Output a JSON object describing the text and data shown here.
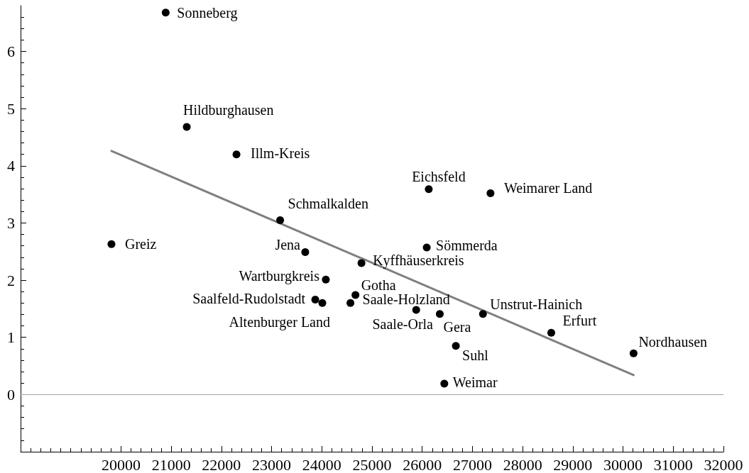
{
  "chart_data": {
    "type": "scatter",
    "marker": "circle",
    "xlim": [
      18000,
      32000
    ],
    "ylim": [
      -1,
      6.8
    ],
    "xticks": [
      {
        "value": 18200,
        "label": null
      },
      {
        "value": 18400,
        "label": null
      },
      {
        "value": 18600,
        "label": null
      },
      {
        "value": 18800,
        "label": null
      },
      {
        "value": 19000,
        "label": null
      },
      {
        "value": 19200,
        "label": null
      },
      {
        "value": 19400,
        "label": null
      },
      {
        "value": 19600,
        "label": null
      },
      {
        "value": 19800,
        "label": null
      },
      20000,
      {
        "value": 20200,
        "label": null
      },
      {
        "value": 20400,
        "label": null
      },
      {
        "value": 20600,
        "label": null
      },
      {
        "value": 20800,
        "label": null
      },
      21000,
      {
        "value": 21200,
        "label": null
      },
      {
        "value": 21400,
        "label": null
      },
      {
        "value": 21600,
        "label": null
      },
      {
        "value": 21800,
        "label": null
      },
      22000,
      {
        "value": 22200,
        "label": null
      },
      {
        "value": 22400,
        "label": null
      },
      {
        "value": 22600,
        "label": null
      },
      {
        "value": 22800,
        "label": null
      },
      23000,
      {
        "value": 23200,
        "label": null
      },
      {
        "value": 23400,
        "label": null
      },
      {
        "value": 23600,
        "label": null
      },
      {
        "value": 23800,
        "label": null
      },
      24000,
      {
        "value": 24200,
        "label": null
      },
      {
        "value": 24400,
        "label": null
      },
      {
        "value": 24600,
        "label": null
      },
      {
        "value": 24800,
        "label": null
      },
      25000,
      {
        "value": 25200,
        "label": null
      },
      {
        "value": 25400,
        "label": null
      },
      {
        "value": 25600,
        "label": null
      },
      {
        "value": 25800,
        "label": null
      },
      26000,
      {
        "value": 26200,
        "label": null
      },
      {
        "value": 26400,
        "label": null
      },
      {
        "value": 26600,
        "label": null
      },
      {
        "value": 26800,
        "label": null
      },
      27000,
      {
        "value": 27200,
        "label": null
      },
      {
        "value": 27400,
        "label": null
      },
      {
        "value": 27600,
        "label": null
      },
      {
        "value": 27800,
        "label": null
      },
      28000,
      {
        "value": 28200,
        "label": null
      },
      {
        "value": 28400,
        "label": null
      },
      {
        "value": 28600,
        "label": null
      },
      {
        "value": 28800,
        "label": null
      },
      29000,
      {
        "value": 29200,
        "label": null
      },
      {
        "value": 29400,
        "label": null
      },
      {
        "value": 29600,
        "label": null
      },
      {
        "value": 29800,
        "label": null
      },
      30000,
      {
        "value": 30200,
        "label": null
      },
      {
        "value": 30400,
        "label": null
      },
      {
        "value": 30600,
        "label": null
      },
      {
        "value": 30800,
        "label": null
      },
      31000,
      {
        "value": 31200,
        "label": null
      },
      {
        "value": 31400,
        "label": null
      },
      {
        "value": 31600,
        "label": null
      },
      {
        "value": 31800,
        "label": null
      },
      32000
    ],
    "yticks": [
      {
        "value": -0.8,
        "label": null
      },
      {
        "value": -0.6,
        "label": null
      },
      {
        "value": -0.4,
        "label": null
      },
      {
        "value": -0.2,
        "label": null
      },
      0,
      {
        "value": 0.2,
        "label": null
      },
      {
        "value": 0.4,
        "label": null
      },
      {
        "value": 0.6,
        "label": null
      },
      {
        "value": 0.8,
        "label": null
      },
      1,
      {
        "value": 1.2,
        "label": null
      },
      {
        "value": 1.4,
        "label": null
      },
      {
        "value": 1.6,
        "label": null
      },
      {
        "value": 1.8,
        "label": null
      },
      2,
      {
        "value": 2.2,
        "label": null
      },
      {
        "value": 2.4,
        "label": null
      },
      {
        "value": 2.6,
        "label": null
      },
      {
        "value": 2.8,
        "label": null
      },
      3,
      {
        "value": 3.2,
        "label": null
      },
      {
        "value": 3.4,
        "label": null
      },
      {
        "value": 3.6,
        "label": null
      },
      {
        "value": 3.8,
        "label": null
      },
      4,
      {
        "value": 4.2,
        "label": null
      },
      {
        "value": 4.4,
        "label": null
      },
      {
        "value": 4.6,
        "label": null
      },
      {
        "value": 4.8,
        "label": null
      },
      5,
      {
        "value": 5.2,
        "label": null
      },
      {
        "value": 5.4,
        "label": null
      },
      {
        "value": 5.6,
        "label": null
      },
      {
        "value": 5.8,
        "label": null
      },
      6,
      {
        "value": 6.2,
        "label": null
      },
      {
        "value": 6.4,
        "label": null
      },
      {
        "value": 6.6,
        "label": null
      }
    ],
    "ref_lines": [
      {
        "axis": "y",
        "value": 0,
        "color": "#a0a0a0"
      }
    ],
    "series": [
      {
        "color": "#000000",
        "x": [
          20890,
          21310,
          22300,
          19810,
          23170,
          23670,
          26130,
          27360,
          26090,
          24790,
          24080,
          24670,
          23870,
          24010,
          24570,
          25880,
          26350,
          27210,
          26670,
          26440,
          28570,
          30210
        ],
        "values": [
          6.68,
          4.68,
          4.2,
          2.63,
          3.05,
          2.49,
          3.59,
          3.52,
          2.57,
          2.3,
          2.01,
          1.74,
          1.66,
          1.6,
          1.6,
          1.48,
          1.41,
          1.41,
          0.85,
          0.19,
          1.08,
          0.72
        ]
      },
      {
        "type": "line",
        "marker": "none",
        "color": "#808080",
        "x": [
          19810,
          30210
        ],
        "values": [
          4.26,
          0.34
        ]
      }
    ],
    "annotations": [
      {
        "text": "Sonneberg",
        "x": 20890,
        "y": 6.68
      },
      {
        "text": "Hildburghausen",
        "x": 21310,
        "y": 4.68
      },
      {
        "text": "Illm-Kreis",
        "x": 22300,
        "y": 4.2
      },
      {
        "text": "Greiz",
        "x": 19810,
        "y": 2.63
      },
      {
        "text": "Schmalkalden",
        "x": 23170,
        "y": 3.05
      },
      {
        "text": "Jena",
        "x": 23670,
        "y": 2.49
      },
      {
        "text": "Eichsfeld",
        "x": 26130,
        "y": 3.59
      },
      {
        "text": "Weimarer Land",
        "x": 27360,
        "y": 3.52
      },
      {
        "text": "Sömmerda",
        "x": 26090,
        "y": 2.57
      },
      {
        "text": "Kyffhäuserkreis",
        "x": 24790,
        "y": 2.3
      },
      {
        "text": "Wartburgkreis",
        "x": 24080,
        "y": 2.01
      },
      {
        "text": "Gotha",
        "x": 24670,
        "y": 1.74
      },
      {
        "text": "Saalfeld-Rudolstadt",
        "x": 23870,
        "y": 1.66
      },
      {
        "text": "Altenburger Land",
        "x": 24010,
        "y": 1.6
      },
      {
        "text": "Saale-Holzland",
        "x": 24570,
        "y": 1.6
      },
      {
        "text": "Saale-Orla",
        "x": 25880,
        "y": 1.48
      },
      {
        "text": "Gera",
        "x": 26350,
        "y": 1.41
      },
      {
        "text": "Unstrut-Hainich",
        "x": 27210,
        "y": 1.41
      },
      {
        "text": "Suhl",
        "x": 26670,
        "y": 0.85
      },
      {
        "text": "Weimar",
        "x": 26440,
        "y": 0.19
      },
      {
        "text": "Erfurt",
        "x": 28570,
        "y": 1.08
      },
      {
        "text": "Nordhausen",
        "x": 30210,
        "y": 0.72
      }
    ]
  }
}
